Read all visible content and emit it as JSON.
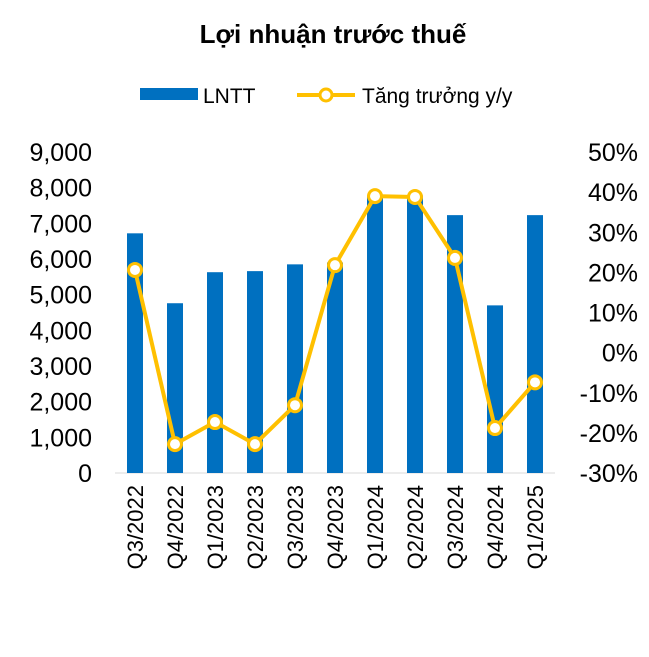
{
  "chart_data": {
    "type": "bar+line",
    "title": "Lợi nhuận trước thuế",
    "categories": [
      "Q3/2022",
      "Q4/2022",
      "Q1/2023",
      "Q2/2023",
      "Q3/2023",
      "Q4/2023",
      "Q1/2024",
      "Q2/2024",
      "Q3/2024",
      "Q4/2024",
      "Q1/2025"
    ],
    "series": [
      {
        "name": "LNTT",
        "type": "bar",
        "axis": "left",
        "color": "#0070C0",
        "values": [
          6720,
          4760,
          5630,
          5660,
          5850,
          5900,
          7780,
          7780,
          7230,
          4700,
          7230
        ]
      },
      {
        "name": "Tăng trưởng y/y",
        "type": "line",
        "axis": "right",
        "color": "#FFC000",
        "values": [
          20.6,
          -22.8,
          -17.3,
          -22.8,
          -13.1,
          21.8,
          39.0,
          38.8,
          23.6,
          -18.8,
          -7.4
        ]
      }
    ],
    "left_axis": {
      "ylim": [
        0,
        9000
      ],
      "ticks": [
        "0",
        "1,000",
        "2,000",
        "3,000",
        "4,000",
        "5,000",
        "6,000",
        "7,000",
        "8,000",
        "9,000"
      ]
    },
    "right_axis": {
      "ylim": [
        -30,
        50
      ],
      "ticks": [
        "-30%",
        "-20%",
        "-10%",
        "0%",
        "10%",
        "20%",
        "30%",
        "40%",
        "50%"
      ]
    },
    "legend": "top",
    "grid": false
  }
}
